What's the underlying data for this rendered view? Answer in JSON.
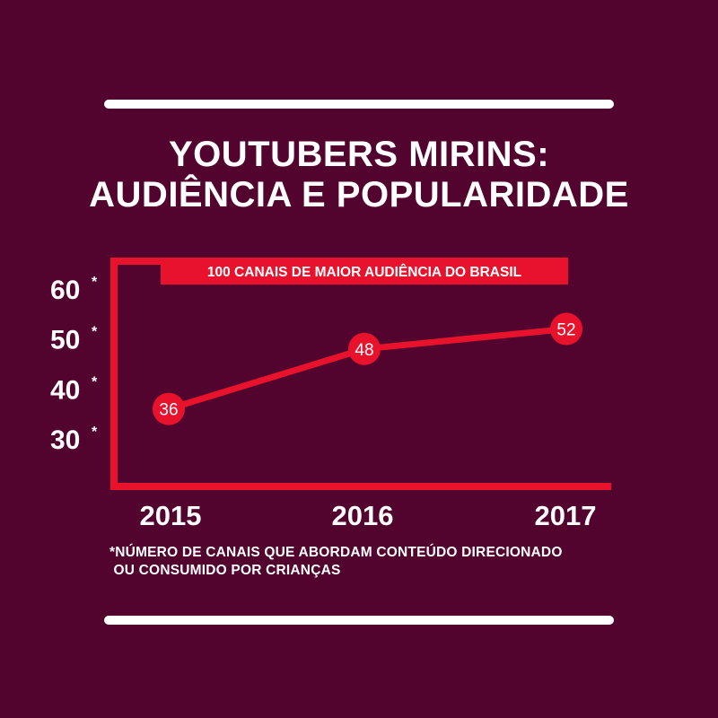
{
  "title": {
    "line1": "YOUTUBERS MIRINS:",
    "line2": "AUDIÊNCIA E POPULARIDADE"
  },
  "colors": {
    "background": "#52032e",
    "accent": "#e8122c",
    "text": "#ffffff"
  },
  "chart_data": {
    "type": "line",
    "subtitle": "100 CANAIS DE MAIOR AUDIÊNCIA DO BRASIL",
    "categories": [
      "2015",
      "2016",
      "2017"
    ],
    "series": [
      {
        "values": [
          36,
          48,
          52
        ]
      }
    ],
    "data_labels": [
      "36",
      "48",
      "52"
    ],
    "y_ticks": [
      {
        "value": 30,
        "label": "30",
        "mark": "*"
      },
      {
        "value": 40,
        "label": "40",
        "mark": "*"
      },
      {
        "value": 50,
        "label": "50",
        "mark": "*"
      },
      {
        "value": 60,
        "label": "60",
        "mark": "*"
      }
    ],
    "ylim": [
      30,
      60
    ],
    "grid": false,
    "legend": "none"
  },
  "footnote": {
    "line1": "*NÚMERO DE CANAIS QUE ABORDAM CONTEÚDO DIRECIONADO",
    "line2": " OU CONSUMIDO POR CRIANÇAS"
  }
}
